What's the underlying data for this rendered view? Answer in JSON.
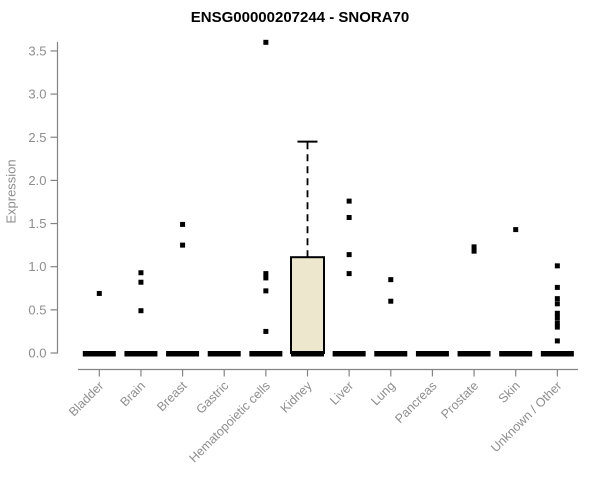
{
  "chart_data": {
    "type": "boxplot",
    "title": "ENSG00000207244 - SNORA70",
    "ylabel": "Expression",
    "xlabel": "",
    "ylim": [
      0,
      3.5
    ],
    "yticks": [
      0.0,
      0.5,
      1.0,
      1.5,
      2.0,
      2.5,
      3.0,
      3.5
    ],
    "grid": false,
    "legend": null,
    "categories": [
      "Bladder",
      "Brain",
      "Breast",
      "Gastric",
      "Hematopoietic cells",
      "Kidney",
      "Liver",
      "Lung",
      "Pancreas",
      "Prostate",
      "Skin",
      "Unknown / Other"
    ],
    "boxes": [
      {
        "category": "Bladder",
        "q1": 0,
        "median": 0,
        "q3": 0,
        "whisker_low": 0,
        "whisker_high": 0,
        "outliers": [
          0.69
        ]
      },
      {
        "category": "Brain",
        "q1": 0,
        "median": 0,
        "q3": 0,
        "whisker_low": 0,
        "whisker_high": 0,
        "outliers": [
          0.93,
          0.82,
          0.49
        ]
      },
      {
        "category": "Breast",
        "q1": 0,
        "median": 0,
        "q3": 0,
        "whisker_low": 0,
        "whisker_high": 0,
        "outliers": [
          1.49,
          1.25
        ]
      },
      {
        "category": "Gastric",
        "q1": 0,
        "median": 0,
        "q3": 0,
        "whisker_low": 0,
        "whisker_high": 0,
        "outliers": []
      },
      {
        "category": "Hematopoietic cells",
        "q1": 0,
        "median": 0,
        "q3": 0,
        "whisker_low": 0,
        "whisker_high": 0,
        "outliers": [
          3.6,
          0.92,
          0.87,
          0.72,
          0.25
        ]
      },
      {
        "category": "Kidney",
        "q1": 0,
        "median": 0,
        "q3": 1.11,
        "whisker_low": 0,
        "whisker_high": 2.45,
        "outliers": []
      },
      {
        "category": "Liver",
        "q1": 0,
        "median": 0,
        "q3": 0,
        "whisker_low": 0,
        "whisker_high": 0,
        "outliers": [
          1.76,
          1.57,
          1.14,
          0.92
        ]
      },
      {
        "category": "Lung",
        "q1": 0,
        "median": 0,
        "q3": 0,
        "whisker_low": 0,
        "whisker_high": 0,
        "outliers": [
          0.85,
          0.6
        ]
      },
      {
        "category": "Pancreas",
        "q1": 0,
        "median": 0,
        "q3": 0,
        "whisker_low": 0,
        "whisker_high": 0,
        "outliers": []
      },
      {
        "category": "Prostate",
        "q1": 0,
        "median": 0,
        "q3": 0,
        "whisker_low": 0,
        "whisker_high": 0,
        "outliers": [
          1.23,
          1.18
        ]
      },
      {
        "category": "Skin",
        "q1": 0,
        "median": 0,
        "q3": 0,
        "whisker_low": 0,
        "whisker_high": 0,
        "outliers": [
          1.43
        ]
      },
      {
        "category": "Unknown / Other",
        "q1": 0,
        "median": 0,
        "q3": 0,
        "whisker_low": 0,
        "whisker_high": 0,
        "outliers": [
          1.01,
          0.76,
          0.63,
          0.57,
          0.46,
          0.41,
          0.35,
          0.3,
          0.14
        ]
      }
    ],
    "colors": {
      "background": "#ffffff",
      "title_color": "#000000",
      "axis_color": "#848484",
      "tick_label_color": "#8e8e8e",
      "box_fill": "#ece7cd",
      "box_stroke": "#000000",
      "point_color": "#000000",
      "median_color": "#000000"
    }
  }
}
